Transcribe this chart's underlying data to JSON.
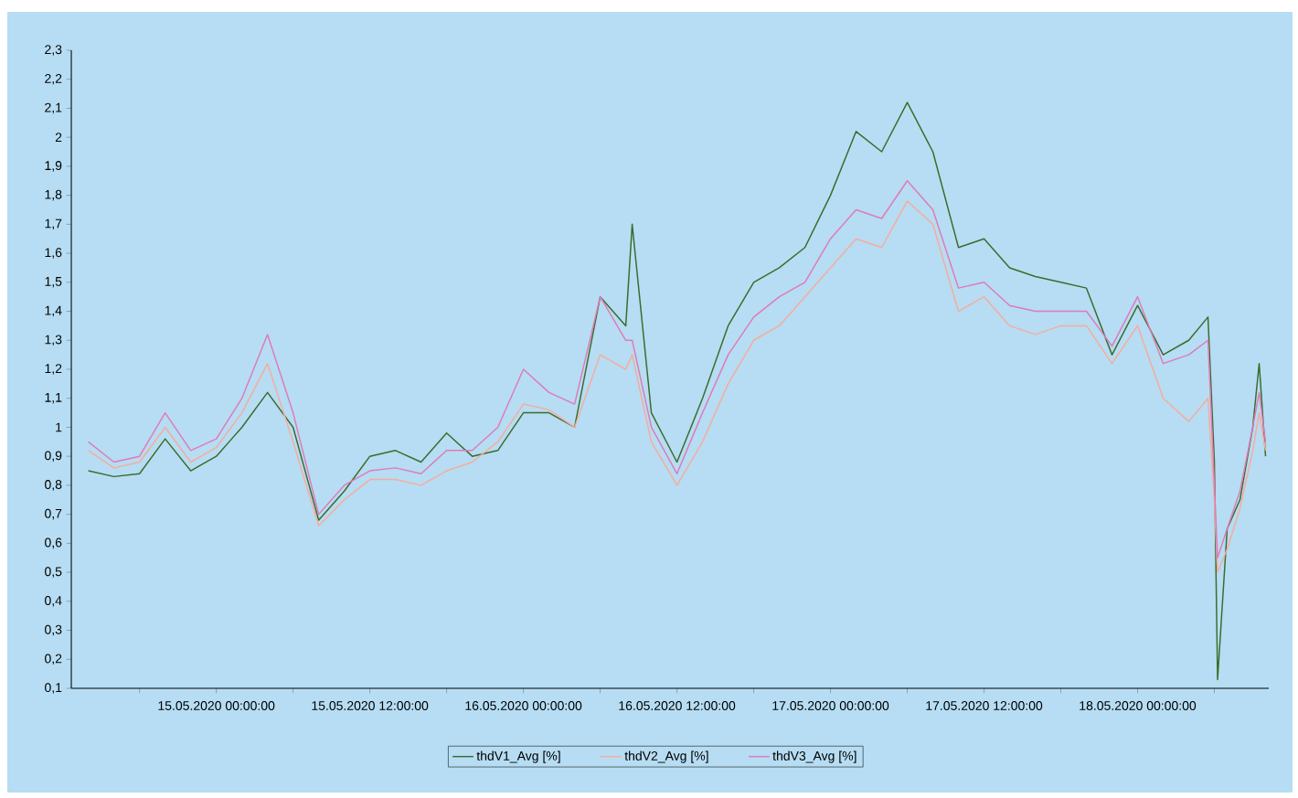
{
  "chart_data": {
    "type": "line",
    "x": [
      "2020-05-14T14:00",
      "2020-05-14T16:00",
      "2020-05-14T18:00",
      "2020-05-14T20:00",
      "2020-05-14T22:00",
      "2020-05-15T00:00",
      "2020-05-15T02:00",
      "2020-05-15T04:00",
      "2020-05-15T06:00",
      "2020-05-15T08:00",
      "2020-05-15T10:00",
      "2020-05-15T12:00",
      "2020-05-15T14:00",
      "2020-05-15T16:00",
      "2020-05-15T18:00",
      "2020-05-15T20:00",
      "2020-05-15T22:00",
      "2020-05-16T00:00",
      "2020-05-16T02:00",
      "2020-05-16T04:00",
      "2020-05-16T06:00",
      "2020-05-16T08:00",
      "2020-05-16T08:30",
      "2020-05-16T10:00",
      "2020-05-16T12:00",
      "2020-05-16T14:00",
      "2020-05-16T16:00",
      "2020-05-16T18:00",
      "2020-05-16T20:00",
      "2020-05-16T22:00",
      "2020-05-17T00:00",
      "2020-05-17T02:00",
      "2020-05-17T04:00",
      "2020-05-17T06:00",
      "2020-05-17T08:00",
      "2020-05-17T10:00",
      "2020-05-17T12:00",
      "2020-05-17T14:00",
      "2020-05-17T16:00",
      "2020-05-17T18:00",
      "2020-05-17T20:00",
      "2020-05-17T22:00",
      "2020-05-18T00:00",
      "2020-05-18T02:00",
      "2020-05-18T04:00",
      "2020-05-18T05:30",
      "2020-05-18T06:00",
      "2020-05-18T06:15",
      "2020-05-18T07:00",
      "2020-05-18T08:00",
      "2020-05-18T09:00",
      "2020-05-18T09:30",
      "2020-05-18T10:00"
    ],
    "series": [
      {
        "name": "thdV1_Avg [%]",
        "color": "#3b6b2b",
        "values": [
          0.85,
          0.83,
          0.84,
          0.96,
          0.85,
          0.9,
          1.0,
          1.12,
          1.0,
          0.68,
          0.78,
          0.9,
          0.92,
          0.88,
          0.98,
          0.9,
          0.92,
          1.05,
          1.05,
          1.0,
          1.45,
          1.35,
          1.7,
          1.05,
          0.88,
          1.1,
          1.35,
          1.5,
          1.55,
          1.62,
          1.8,
          2.02,
          1.95,
          2.12,
          1.95,
          1.62,
          1.65,
          1.55,
          1.52,
          1.5,
          1.48,
          1.25,
          1.42,
          1.25,
          1.3,
          1.38,
          0.88,
          0.13,
          0.65,
          0.75,
          1.0,
          1.22,
          0.9
        ]
      },
      {
        "name": "thdV2_Avg [%]",
        "color": "#f7ab9c",
        "values": [
          0.92,
          0.86,
          0.88,
          1.0,
          0.88,
          0.93,
          1.05,
          1.22,
          0.95,
          0.66,
          0.75,
          0.82,
          0.82,
          0.8,
          0.85,
          0.88,
          0.95,
          1.08,
          1.06,
          1.0,
          1.25,
          1.2,
          1.25,
          0.95,
          0.8,
          0.95,
          1.15,
          1.3,
          1.35,
          1.45,
          1.55,
          1.65,
          1.62,
          1.78,
          1.7,
          1.4,
          1.45,
          1.35,
          1.32,
          1.35,
          1.35,
          1.22,
          1.35,
          1.1,
          1.02,
          1.1,
          0.75,
          0.5,
          0.58,
          0.72,
          0.92,
          1.05,
          0.92
        ]
      },
      {
        "name": "thdV3_Avg [%]",
        "color": "#e07ab8",
        "values": [
          0.95,
          0.88,
          0.9,
          1.05,
          0.92,
          0.96,
          1.1,
          1.32,
          1.05,
          0.7,
          0.8,
          0.85,
          0.86,
          0.84,
          0.92,
          0.92,
          1.0,
          1.2,
          1.12,
          1.08,
          1.45,
          1.3,
          1.3,
          1.0,
          0.84,
          1.05,
          1.25,
          1.38,
          1.45,
          1.5,
          1.65,
          1.75,
          1.72,
          1.85,
          1.75,
          1.48,
          1.5,
          1.42,
          1.4,
          1.4,
          1.4,
          1.28,
          1.45,
          1.22,
          1.25,
          1.3,
          0.8,
          0.55,
          0.65,
          0.78,
          1.0,
          1.12,
          0.95
        ]
      }
    ],
    "xlim": [
      "2020-05-14T12:40",
      "2020-05-18T10:15"
    ],
    "xticks": [
      {
        "value": "2020-05-14T18:00",
        "label": null
      },
      {
        "value": "2020-05-15T00:00",
        "label": "15.05.2020 00:00:00"
      },
      {
        "value": "2020-05-15T06:00",
        "label": null
      },
      {
        "value": "2020-05-15T12:00",
        "label": "15.05.2020 12:00:00"
      },
      {
        "value": "2020-05-15T18:00",
        "label": null
      },
      {
        "value": "2020-05-16T00:00",
        "label": "16.05.2020 00:00:00"
      },
      {
        "value": "2020-05-16T06:00",
        "label": null
      },
      {
        "value": "2020-05-16T12:00",
        "label": "16.05.2020 12:00:00"
      },
      {
        "value": "2020-05-16T18:00",
        "label": null
      },
      {
        "value": "2020-05-17T00:00",
        "label": "17.05.2020 00:00:00"
      },
      {
        "value": "2020-05-17T06:00",
        "label": null
      },
      {
        "value": "2020-05-17T12:00",
        "label": "17.05.2020 12:00:00"
      },
      {
        "value": "2020-05-17T18:00",
        "label": null
      },
      {
        "value": "2020-05-18T00:00",
        "label": "18.05.2020 00:00:00"
      },
      {
        "value": "2020-05-18T06:00",
        "label": null
      }
    ],
    "ylim": [
      0.1,
      2.3
    ],
    "yticks": [
      {
        "value": 0.1,
        "label": "0,1"
      },
      {
        "value": 0.2,
        "label": "0,2"
      },
      {
        "value": 0.3,
        "label": "0,3"
      },
      {
        "value": 0.4,
        "label": "0,4"
      },
      {
        "value": 0.5,
        "label": "0,5"
      },
      {
        "value": 0.6,
        "label": "0,6"
      },
      {
        "value": 0.7,
        "label": "0,7"
      },
      {
        "value": 0.8,
        "label": "0,8"
      },
      {
        "value": 0.9,
        "label": "0,9"
      },
      1,
      {
        "value": 1.1,
        "label": "1,1"
      },
      {
        "value": 1.2,
        "label": "1,2"
      },
      {
        "value": 1.3,
        "label": "1,3"
      },
      {
        "value": 1.4,
        "label": "1,4"
      },
      {
        "value": 1.5,
        "label": "1,5"
      },
      {
        "value": 1.6,
        "label": "1,6"
      },
      {
        "value": 1.7,
        "label": "1,7"
      },
      {
        "value": 1.8,
        "label": "1,8"
      },
      {
        "value": 1.9,
        "label": "1,9"
      },
      2,
      {
        "value": 2.1,
        "label": "2,1"
      },
      {
        "value": 2.2,
        "label": "2,2"
      },
      {
        "value": 2.3,
        "label": "2,3"
      }
    ],
    "legend": "bottom",
    "marker": "none",
    "line_style": "solid"
  }
}
